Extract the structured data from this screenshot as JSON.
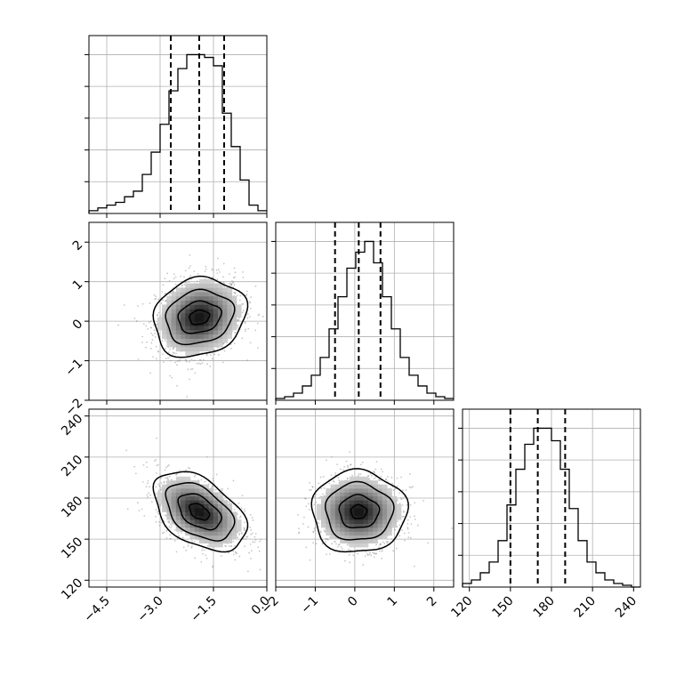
{
  "chart_data": {
    "type": "corner",
    "grid": true,
    "parameters": [
      {
        "key": "p0",
        "range": [
          -5.0,
          0.0
        ],
        "ticks": [
          -4.5,
          -3.0,
          -1.5,
          0.0
        ],
        "tick_labels": [
          "−4.5",
          "−3.0",
          "−1.5",
          "0.0"
        ],
        "quantiles": [
          -2.7,
          -1.9,
          -1.2
        ],
        "histogram": {
          "bin_start": -5.0,
          "bin_width": 0.25,
          "counts": [
            1,
            2,
            3,
            4,
            6,
            8,
            14,
            22,
            32,
            44,
            52,
            57,
            57,
            56,
            53,
            36,
            24,
            12,
            3,
            1
          ]
        }
      },
      {
        "key": "p1",
        "range": [
          -2.0,
          2.5
        ],
        "ticks": [
          -2,
          -1,
          0,
          1,
          2
        ],
        "tick_labels": [
          "−2",
          "−1",
          "0",
          "1",
          "2"
        ],
        "quantiles": [
          -0.5,
          0.1,
          0.65
        ],
        "histogram": {
          "bin_start": -2.0,
          "bin_width": 0.225,
          "counts": [
            1,
            2,
            4,
            8,
            14,
            24,
            40,
            58,
            74,
            83,
            89,
            77,
            58,
            40,
            24,
            14,
            8,
            4,
            2,
            1
          ]
        }
      },
      {
        "key": "p2",
        "range": [
          115,
          245
        ],
        "ticks": [
          120,
          150,
          180,
          210,
          240
        ],
        "tick_labels": [
          "120",
          "150",
          "180",
          "210",
          "240"
        ],
        "quantiles": [
          150,
          170,
          190
        ],
        "histogram": {
          "bin_start": 115,
          "bin_width": 6.5,
          "counts": [
            2,
            4,
            8,
            14,
            26,
            46,
            66,
            80,
            89,
            89,
            82,
            66,
            44,
            26,
            14,
            8,
            4,
            2,
            1,
            0
          ]
        }
      }
    ],
    "pairs": [
      {
        "x": "p0",
        "y": "p1",
        "center": [
          -1.9,
          0.1
        ],
        "spread": [
          0.55,
          0.45
        ],
        "rho": 0.15,
        "contour_levels": [
          {
            "xr": 1.3,
            "yr": 1.0
          },
          {
            "xr": 0.95,
            "yr": 0.68
          },
          {
            "xr": 0.6,
            "yr": 0.4
          },
          {
            "xr": 0.28,
            "yr": 0.18
          }
        ]
      },
      {
        "x": "p0",
        "y": "p2",
        "center": [
          -1.9,
          170
        ],
        "spread": [
          0.55,
          12
        ],
        "rho": -0.45,
        "contour_levels": [
          {
            "xr": 1.3,
            "yr": 29
          },
          {
            "xr": 0.95,
            "yr": 21
          },
          {
            "xr": 0.6,
            "yr": 13
          },
          {
            "xr": 0.28,
            "yr": 6
          }
        ]
      },
      {
        "x": "p1",
        "y": "p2",
        "center": [
          0.1,
          170
        ],
        "spread": [
          0.5,
          12
        ],
        "rho": 0.0,
        "contour_levels": [
          {
            "xr": 1.2,
            "yr": 30
          },
          {
            "xr": 0.85,
            "yr": 21
          },
          {
            "xr": 0.5,
            "yr": 12
          },
          {
            "xr": 0.2,
            "yr": 5
          }
        ]
      }
    ]
  }
}
